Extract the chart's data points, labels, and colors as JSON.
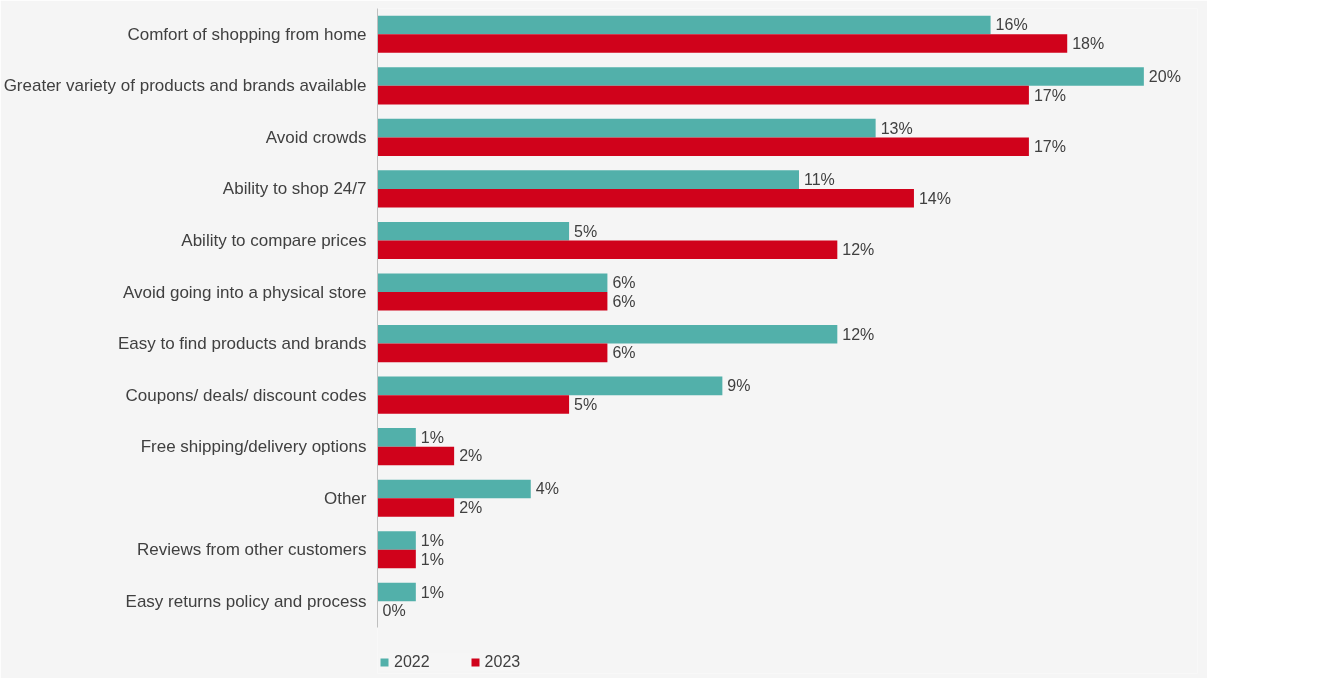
{
  "chart_data": {
    "type": "bar",
    "orientation": "horizontal",
    "tick_labels": "y",
    "legend": "bottom left",
    "grid": false,
    "categories": [
      "Comfort of shopping from home",
      "Greater variety of products and brands available",
      "Avoid crowds",
      "Ability to shop 24/7",
      "Ability to compare prices",
      "Avoid going into a physical store",
      "Easy to find products and brands",
      "Coupons/ deals/ discount codes",
      "Free shipping/delivery options",
      "Other",
      "Reviews from other customers",
      "Easy returns policy and process"
    ],
    "series": [
      {
        "name": "2022",
        "color": "#52b0aa",
        "values": [
          16,
          20,
          13,
          11,
          5,
          6,
          12,
          9,
          1,
          4,
          1,
          1
        ],
        "value_labels": [
          "16%",
          "20%",
          "13%",
          "11%",
          "5%",
          "6%",
          "12%",
          "9%",
          "1%",
          "4%",
          "1%",
          "1%"
        ]
      },
      {
        "name": "2023",
        "color": "#d0021b",
        "values": [
          18,
          17,
          17,
          14,
          12,
          6,
          6,
          5,
          2,
          2,
          1,
          0
        ],
        "value_labels": [
          "18%",
          "17%",
          "17%",
          "14%",
          "12%",
          "6%",
          "6%",
          "5%",
          "2%",
          "2%",
          "1%",
          "0%"
        ]
      }
    ]
  }
}
